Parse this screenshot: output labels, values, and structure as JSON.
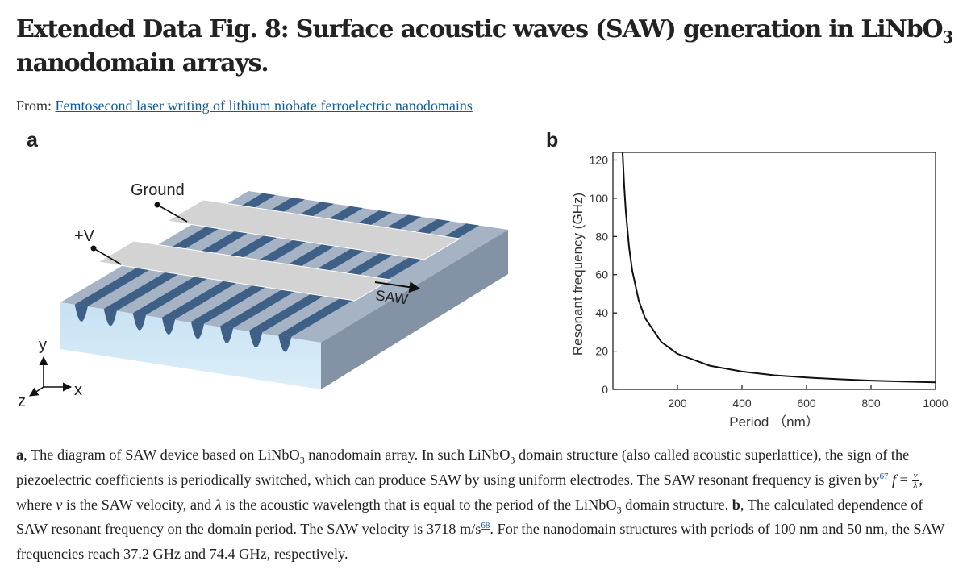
{
  "header": {
    "title_part1": "Extended Data Fig. 8: Surface acoustic waves (SAW) generation in LiNbO",
    "title_sub": "3",
    "title_part2": " nanodomain arrays.",
    "from_label": "From:",
    "from_link": "Femtosecond laser writing of lithium niobate ferroelectric nanodomains"
  },
  "panel_a": {
    "letter": "a",
    "label_ground": "Ground",
    "label_plus_v": "+V",
    "label_saw": "SAW",
    "axis_y": "y",
    "axis_x": "x",
    "axis_z": "z"
  },
  "panel_b": {
    "letter": "b",
    "ylabel": "Resonant frequency (GHz)",
    "xlabel": "Period （nm）"
  },
  "chart_data": {
    "type": "line",
    "xlabel": "Period （nm）",
    "ylabel": "Resonant frequency (GHz)",
    "xlim": [
      0,
      1000
    ],
    "ylim": [
      0,
      124
    ],
    "xticks": [
      200,
      400,
      600,
      800,
      1000
    ],
    "yticks": [
      0,
      20,
      40,
      60,
      80,
      100,
      120
    ],
    "grid": false,
    "series": [
      {
        "x": [
          30,
          35,
          40,
          50,
          60,
          80,
          100,
          150,
          200,
          300,
          400,
          500,
          600,
          700,
          800,
          900,
          1000
        ],
        "y": [
          123.9,
          106.2,
          93.0,
          74.4,
          62.0,
          46.5,
          37.2,
          24.8,
          18.6,
          12.4,
          9.3,
          7.4,
          6.2,
          5.3,
          4.6,
          4.1,
          3.7
        ]
      }
    ]
  },
  "caption": {
    "a_label": "a",
    "t1": ", The diagram of SAW device based on LiNbO",
    "t1_sub": "3",
    "t2": " nanodomain array. In such LiNbO",
    "t2_sub": "3",
    "t3": " domain structure (also called acoustic superlattice), the sign of the piezoelectric coefficients is periodically switched, which can produce SAW by using uniform electrodes. The SAW resonant frequency is given by",
    "ref1": "67",
    "eq_f": "f",
    "eq_equals": " = ",
    "eq_num": "v",
    "eq_den": "λ",
    "t4": ", where ",
    "var_v": "v",
    "t5": " is the SAW velocity, and ",
    "var_lambda": "λ",
    "t6": " is the acoustic wavelength that is equal to the period of the LiNbO",
    "t6_sub": "3",
    "t7": " domain structure. ",
    "b_label": "b",
    "t8": ", The calculated dependence of SAW resonant frequency on the domain period. The SAW velocity is 3718 m/s",
    "ref2": "68",
    "t9": ". For the nanodomain structures with periods of 100 nm and 50 nm, the SAW frequencies reach ",
    "val1": "37.2 GHz",
    "t10": " and ",
    "val2": "74.4 GHz",
    "t11": ", respectively."
  }
}
